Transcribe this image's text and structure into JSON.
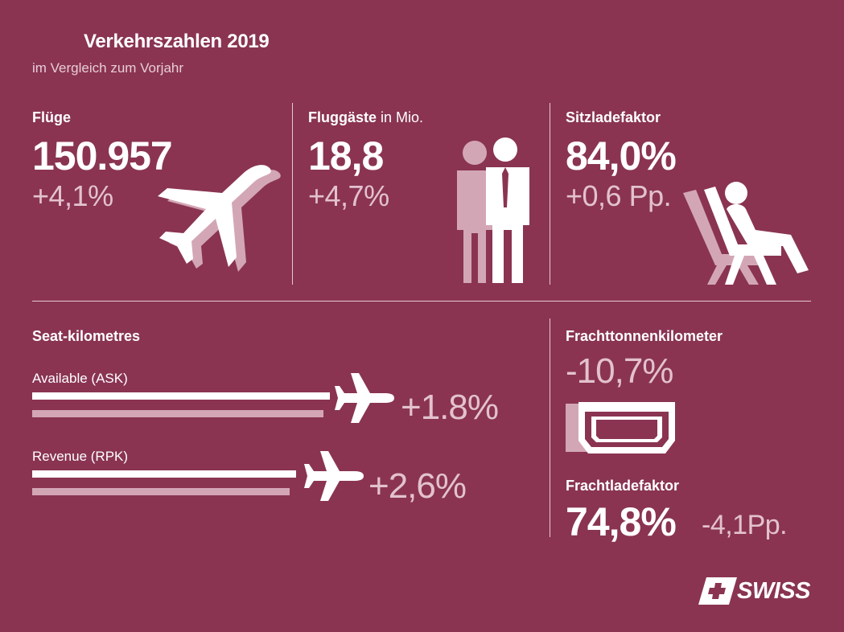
{
  "header": {
    "title": "Verkehrszahlen 2019",
    "subtitle": "im Vergleich zum Vorjahr"
  },
  "kpis": [
    {
      "label": "Flüge",
      "label_suffix": "",
      "value": "150.957",
      "delta": "+4,1%",
      "icon": "airplane-icon"
    },
    {
      "label": "Fluggäste",
      "label_suffix": " in Mio.",
      "value": "18,8",
      "delta": "+4,7%",
      "icon": "passengers-icon"
    },
    {
      "label": "Sitzladefaktor",
      "label_suffix": "",
      "value": "84,0%",
      "delta": "+0,6 Pp.",
      "icon": "seated-passenger-icon"
    }
  ],
  "seat_km": {
    "title": "Seat-kilometres",
    "rows": [
      {
        "label": "Available (ASK)",
        "delta": "+1.8%",
        "change_percent": 1.8
      },
      {
        "label": "Revenue (RPK)",
        "delta": "+2,6%",
        "change_percent": 2.6
      }
    ]
  },
  "cargo": {
    "tonnage_label": "Frachttonnenkilometer",
    "tonnage_delta": "-10,7%",
    "load_label": "Frachtladefaktor",
    "load_value": "74,8%",
    "load_delta": "-4,1Pp."
  },
  "brand": {
    "name": "SWISS",
    "logo_icon": "swiss-cross-icon"
  },
  "colors": {
    "background": "#8a3452",
    "text": "#ffffff",
    "muted": "#e3c2cd",
    "shadow": "#d3a6b6"
  }
}
